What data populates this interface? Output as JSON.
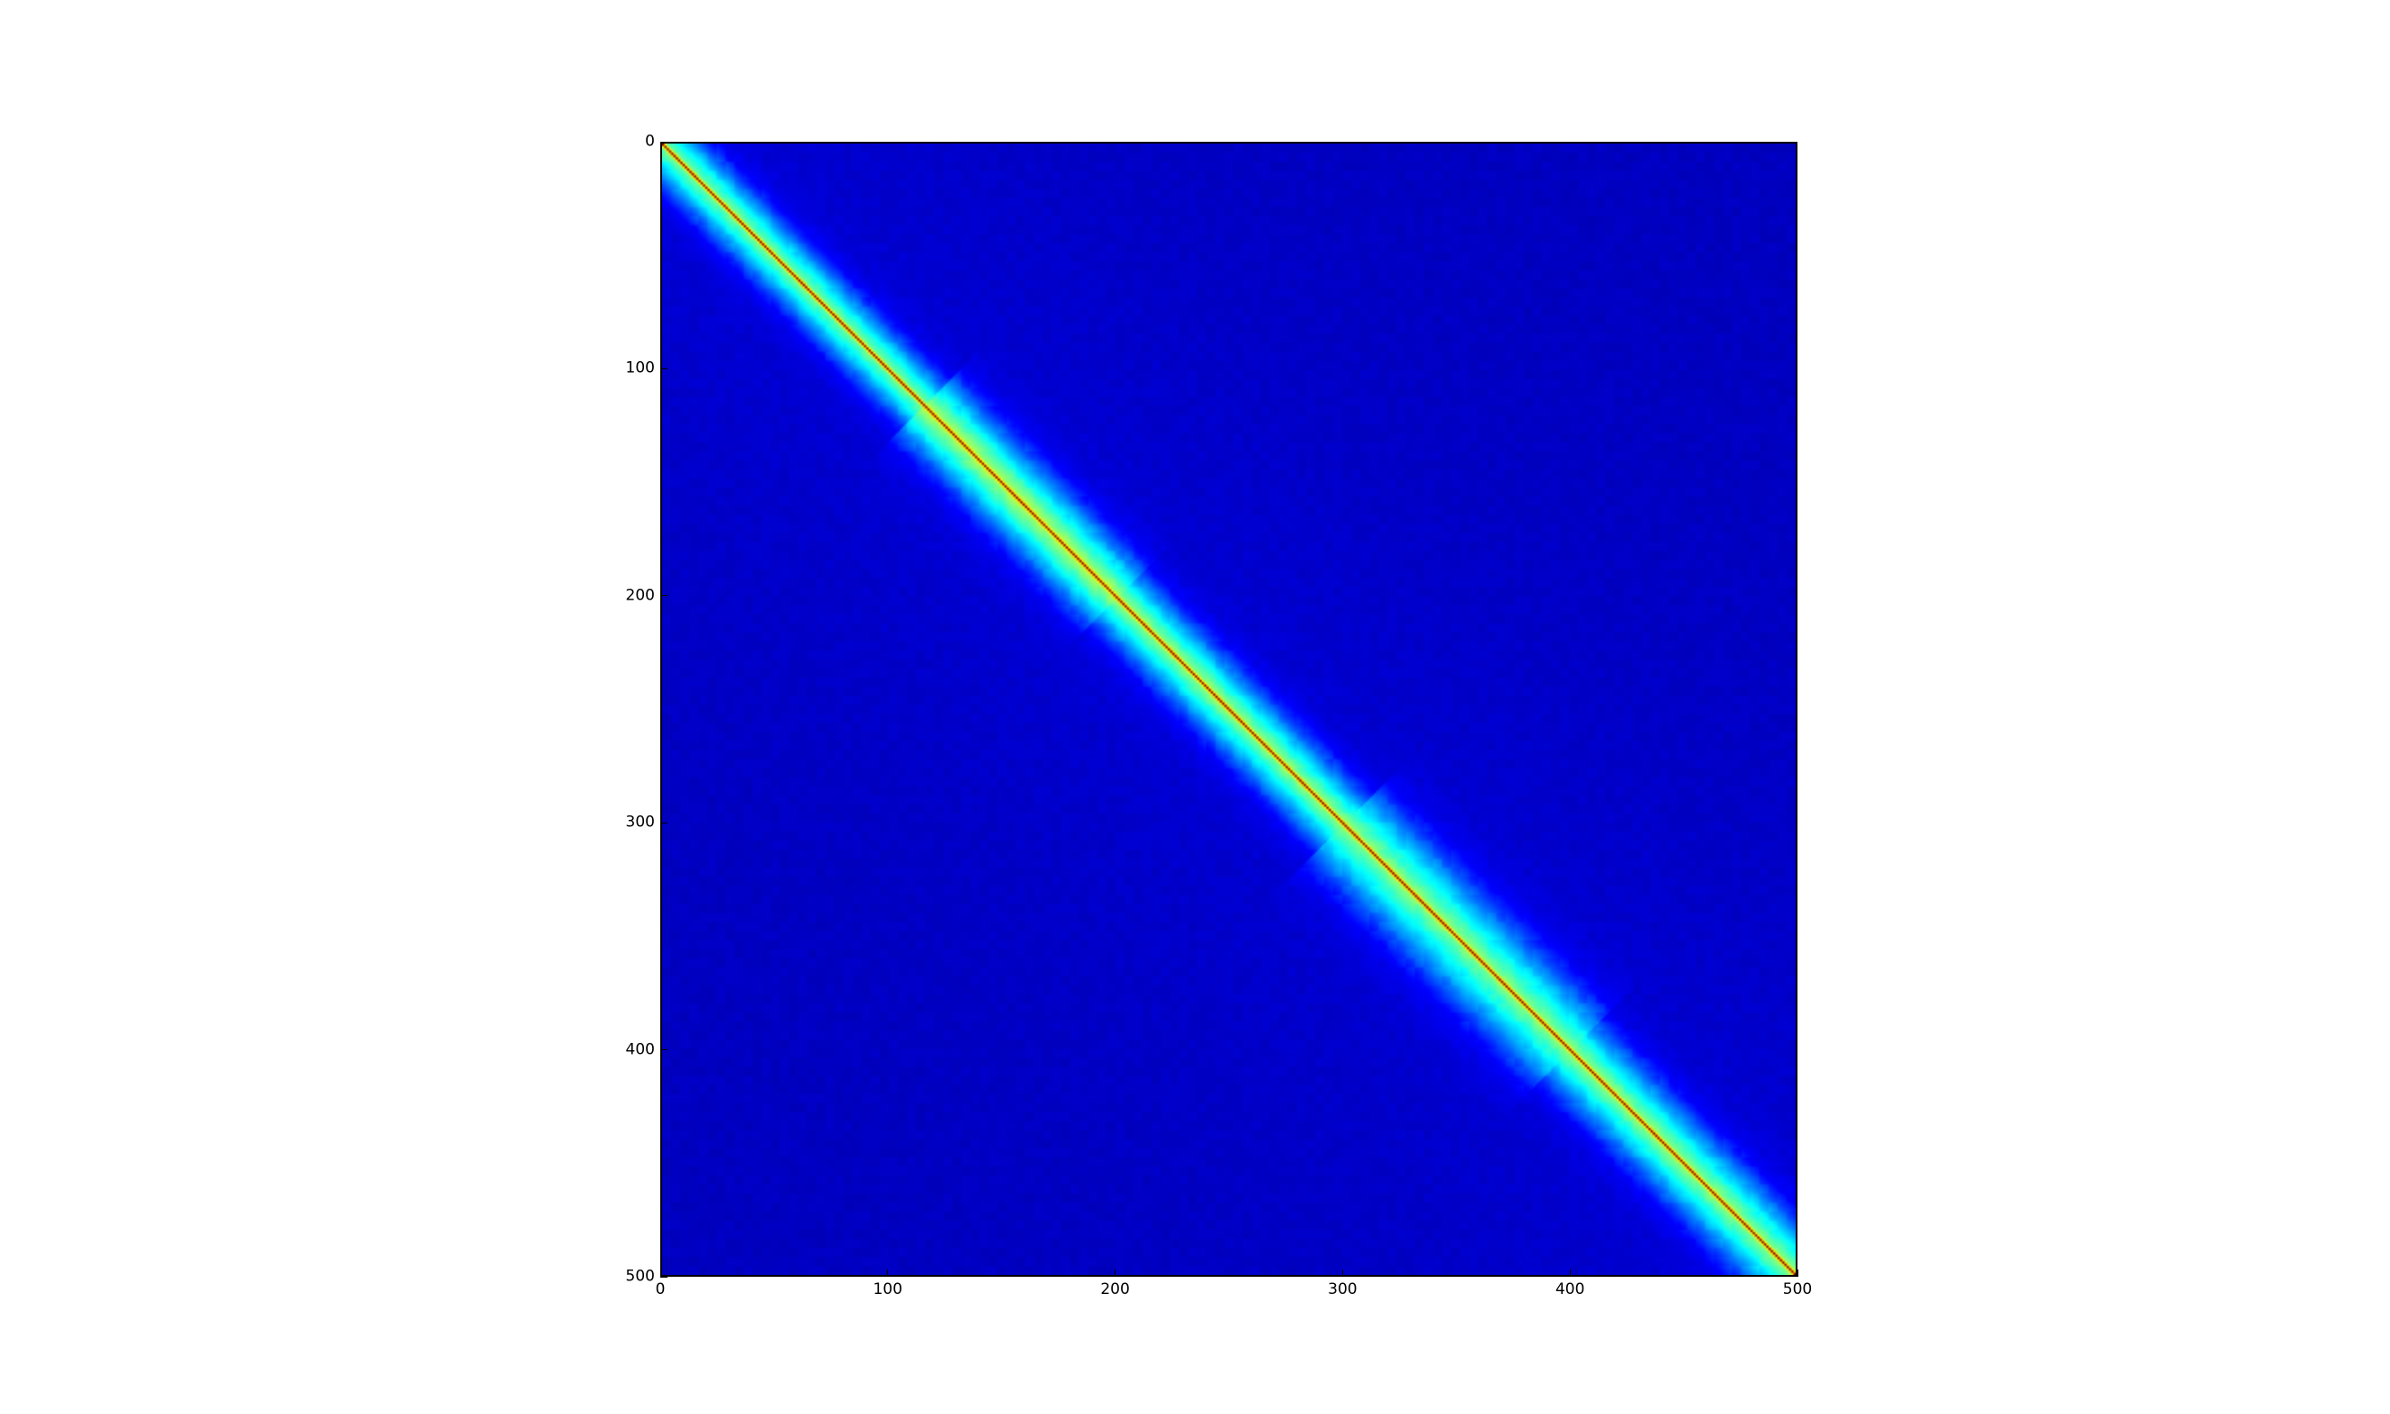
{
  "chart_data": {
    "type": "heatmap",
    "title": "",
    "xlabel": "",
    "ylabel": "",
    "matrix_size": 500,
    "xlim": [
      0,
      500
    ],
    "ylim": [
      500,
      0
    ],
    "y_axis_inverted": true,
    "x_ticks": [
      0,
      100,
      200,
      300,
      400,
      500
    ],
    "y_ticks": [
      0,
      100,
      200,
      300,
      400,
      500
    ],
    "x_tick_labels": [
      "0",
      "100",
      "200",
      "300",
      "400",
      "500"
    ],
    "y_tick_labels": [
      "0",
      "100",
      "200",
      "300",
      "400",
      "500"
    ],
    "colormap": "jet",
    "colormap_stops": [
      "#00007f",
      "#0000ff",
      "#00ffff",
      "#ffff00",
      "#ff0000",
      "#7f0000"
    ],
    "value_range": [
      0,
      1
    ],
    "diagonal_value": 1.0,
    "background_value": 0.1,
    "bands": [
      {
        "start": 0,
        "end": 115,
        "strength": 0.28,
        "width": 14
      },
      {
        "start": 115,
        "end": 200,
        "strength": 0.32,
        "width": 18
      },
      {
        "start": 200,
        "end": 300,
        "strength": 0.3,
        "width": 16
      },
      {
        "start": 300,
        "end": 400,
        "strength": 0.3,
        "width": 22
      },
      {
        "start": 400,
        "end": 500,
        "strength": 0.3,
        "width": 18
      }
    ],
    "grid": false,
    "legend": "none",
    "colorbar": false
  }
}
